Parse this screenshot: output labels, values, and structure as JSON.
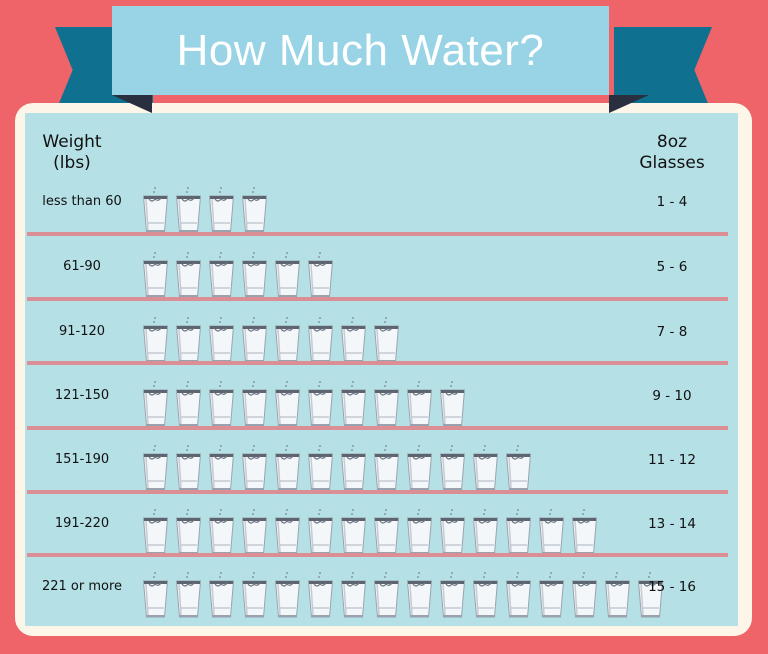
{
  "title": "How Much Water?",
  "headers": {
    "weight": "Weight (lbs)",
    "weight_line1": "Weight",
    "weight_line2": "(lbs)",
    "glasses_line1": "8oz",
    "glasses_line2": "Glasses"
  },
  "colors": {
    "background": "#ef6469",
    "banner": "#98d4e6",
    "ribbon_tail": "#0f7090",
    "ribbon_fold": "#2a2f3f",
    "frame": "#fdf6e8",
    "panel": "#b4e0e6",
    "divider": "#dc8e95"
  },
  "rows": [
    {
      "weight": "less than 60",
      "glasses": "1 - 4",
      "icon_count": 4
    },
    {
      "weight": "61-90",
      "glasses": "5 - 6",
      "icon_count": 6
    },
    {
      "weight": "91-120",
      "glasses": "7 - 8",
      "icon_count": 8
    },
    {
      "weight": "121-150",
      "glasses": "9 - 10",
      "icon_count": 10
    },
    {
      "weight": "151-190",
      "glasses": "11 - 12",
      "icon_count": 12
    },
    {
      "weight": "191-220",
      "glasses": "13 - 14",
      "icon_count": 14
    },
    {
      "weight": "221 or more",
      "glasses": "15 - 16",
      "icon_count": 16
    }
  ],
  "icon": "water-glass-icon"
}
